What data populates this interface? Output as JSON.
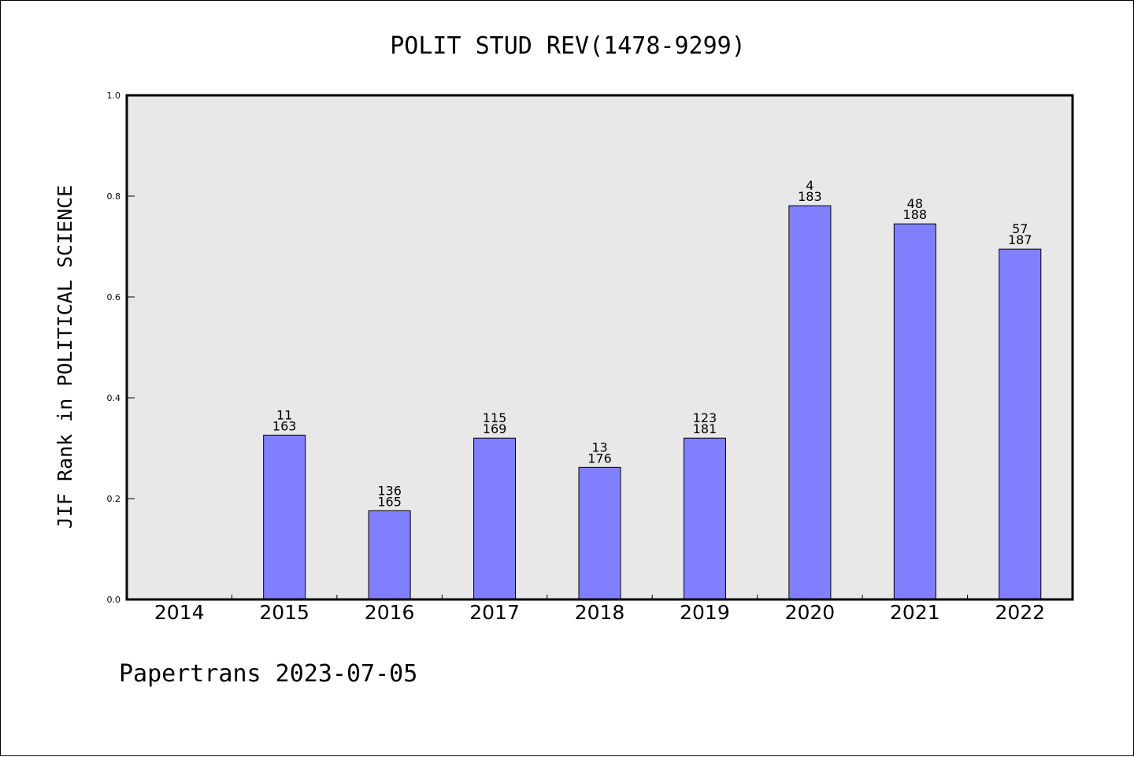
{
  "title": "POLIT STUD REV(1478-9299)",
  "footer": "Papertrans 2023-07-05",
  "colors": {
    "bar": "#8080ff",
    "plot_background": "#e8e8e8"
  },
  "chart_data": {
    "type": "bar",
    "title": "POLIT STUD REV(1478-9299)",
    "ylabel": "JIF Rank in POLITICAL SCIENCE",
    "xlabel": "",
    "ylim": [
      0,
      1.0
    ],
    "yticks": [
      "0.0",
      "0.2",
      "0.4",
      "0.6",
      "0.8",
      "1.0"
    ],
    "grid": false,
    "categories": [
      "2014",
      "2015",
      "2016",
      "2017",
      "2018",
      "2019",
      "2020",
      "2021",
      "2022"
    ],
    "values": [
      null,
      0.326,
      0.176,
      0.32,
      0.262,
      0.32,
      0.781,
      0.745,
      0.695
    ],
    "rank_labels": [
      null,
      "11",
      "136",
      "115",
      "13",
      "123",
      "4",
      "48",
      "57"
    ],
    "total_labels": [
      null,
      "163",
      "165",
      "169",
      "176",
      "181",
      "183",
      "188",
      "187"
    ]
  }
}
